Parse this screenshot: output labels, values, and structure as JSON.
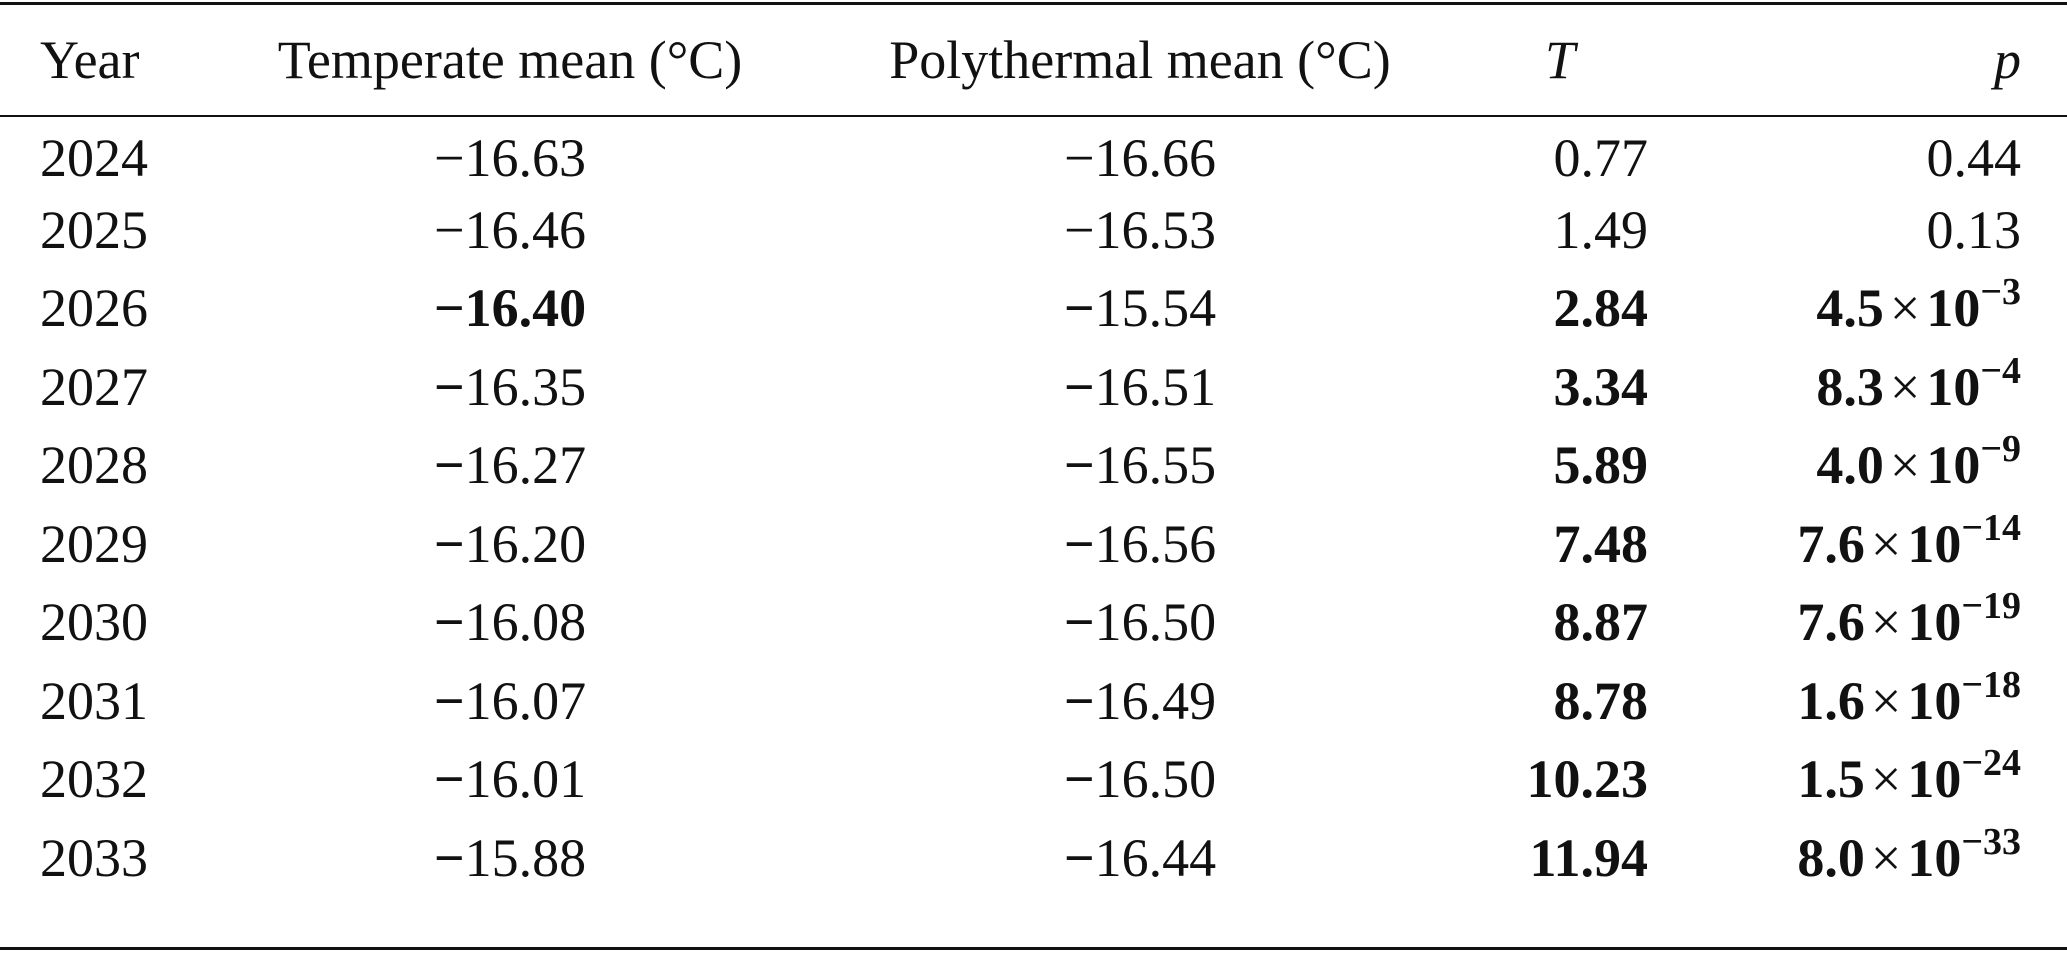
{
  "table": {
    "headers": [
      "Year",
      "Temperate mean (°C)",
      "Polythermal mean (°C)",
      "T",
      "p"
    ],
    "rows": [
      {
        "year": "2024",
        "temperate": {
          "sign": "−",
          "num": "16.63",
          "bold_sign": false,
          "bold_num": false
        },
        "polythermal": {
          "sign": "−",
          "num": "16.66",
          "bold_sign": false
        },
        "T": {
          "value": "0.77",
          "bold": false
        },
        "p": {
          "plain": "0.44",
          "bold": false
        }
      },
      {
        "year": "2025",
        "temperate": {
          "sign": "−",
          "num": "16.46",
          "bold_sign": false,
          "bold_num": false
        },
        "polythermal": {
          "sign": "−",
          "num": "16.53",
          "bold_sign": false
        },
        "T": {
          "value": "1.49",
          "bold": false
        },
        "p": {
          "plain": "0.13",
          "bold": false
        }
      },
      {
        "year": "2026",
        "temperate": {
          "sign": "−",
          "num": "16.40",
          "bold_sign": true,
          "bold_num": true
        },
        "polythermal": {
          "sign": "−",
          "num": "15.54",
          "bold_sign": true
        },
        "T": {
          "value": "2.84",
          "bold": true
        },
        "p": {
          "mantissa": "4.5",
          "exponent": "−3",
          "bold": true
        }
      },
      {
        "year": "2027",
        "temperate": {
          "sign": "−",
          "num": "16.35",
          "bold_sign": true,
          "bold_num": false
        },
        "polythermal": {
          "sign": "−",
          "num": "16.51",
          "bold_sign": true
        },
        "T": {
          "value": "3.34",
          "bold": true
        },
        "p": {
          "mantissa": "8.3",
          "exponent": "−4",
          "bold": true
        }
      },
      {
        "year": "2028",
        "temperate": {
          "sign": "−",
          "num": "16.27",
          "bold_sign": true,
          "bold_num": false
        },
        "polythermal": {
          "sign": "−",
          "num": "16.55",
          "bold_sign": true
        },
        "T": {
          "value": "5.89",
          "bold": true
        },
        "p": {
          "mantissa": "4.0",
          "exponent": "−9",
          "bold": true
        }
      },
      {
        "year": "2029",
        "temperate": {
          "sign": "−",
          "num": "16.20",
          "bold_sign": true,
          "bold_num": false
        },
        "polythermal": {
          "sign": "−",
          "num": "16.56",
          "bold_sign": true
        },
        "T": {
          "value": "7.48",
          "bold": true
        },
        "p": {
          "mantissa": "7.6",
          "exponent": "−14",
          "bold": true
        }
      },
      {
        "year": "2030",
        "temperate": {
          "sign": "−",
          "num": "16.08",
          "bold_sign": true,
          "bold_num": false
        },
        "polythermal": {
          "sign": "−",
          "num": "16.50",
          "bold_sign": true
        },
        "T": {
          "value": "8.87",
          "bold": true
        },
        "p": {
          "mantissa": "7.6",
          "exponent": "−19",
          "bold": true
        }
      },
      {
        "year": "2031",
        "temperate": {
          "sign": "−",
          "num": "16.07",
          "bold_sign": true,
          "bold_num": false
        },
        "polythermal": {
          "sign": "−",
          "num": "16.49",
          "bold_sign": true
        },
        "T": {
          "value": "8.78",
          "bold": true
        },
        "p": {
          "mantissa": "1.6",
          "exponent": "−18",
          "bold": true
        }
      },
      {
        "year": "2032",
        "temperate": {
          "sign": "−",
          "num": "16.01",
          "bold_sign": true,
          "bold_num": false
        },
        "polythermal": {
          "sign": "−",
          "num": "16.50",
          "bold_sign": true
        },
        "T": {
          "value": "10.23",
          "bold": true
        },
        "p": {
          "mantissa": "1.5",
          "exponent": "−24",
          "bold": true
        }
      },
      {
        "year": "2033",
        "temperate": {
          "sign": "−",
          "num": "15.88",
          "bold_sign": true,
          "bold_num": false
        },
        "polythermal": {
          "sign": "−",
          "num": "16.44",
          "bold_sign": true
        },
        "T": {
          "value": "11.94",
          "bold": true
        },
        "p": {
          "mantissa": "8.0",
          "exponent": "−33",
          "bold": true
        }
      }
    ],
    "times_symbol": "×",
    "base": "10"
  }
}
